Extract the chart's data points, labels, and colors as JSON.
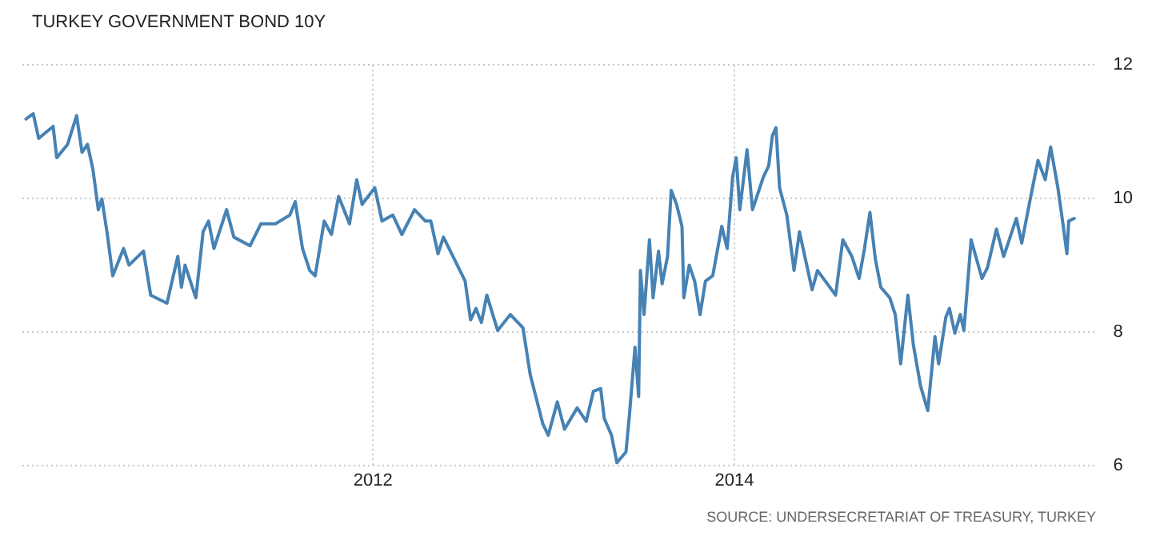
{
  "chart_data": {
    "type": "line",
    "title": "TURKEY GOVERNMENT BOND 10Y",
    "annotations": [
      "SOURCE: UNDERSECRETARIAT OF TREASURY, TURKEY"
    ],
    "xlim": [
      2010.06,
      2015.99
    ],
    "xticks": [
      2012,
      2014
    ],
    "ylim": [
      6,
      12
    ],
    "yticks": [
      6,
      8,
      10,
      12
    ],
    "grid": true,
    "legend": false,
    "marker": "none",
    "line_style": "solid",
    "series": [
      {
        "color": "#4682b4",
        "x": [
          2010.08,
          2010.12,
          2010.15,
          2010.23,
          2010.25,
          2010.31,
          2010.36,
          2010.39,
          2010.42,
          2010.45,
          2010.48,
          2010.5,
          2010.53,
          2010.56,
          2010.62,
          2010.65,
          2010.73,
          2010.77,
          2010.86,
          2010.92,
          2010.94,
          2010.96,
          2011.02,
          2011.06,
          2011.09,
          2011.12,
          2011.19,
          2011.23,
          2011.32,
          2011.38,
          2011.46,
          2011.54,
          2011.57,
          2011.61,
          2011.65,
          2011.68,
          2011.73,
          2011.77,
          2011.81,
          2011.87,
          2011.91,
          2011.94,
          2012.01,
          2012.05,
          2012.11,
          2012.16,
          2012.23,
          2012.29,
          2012.32,
          2012.36,
          2012.39,
          2012.51,
          2012.54,
          2012.57,
          2012.6,
          2012.63,
          2012.69,
          2012.76,
          2012.83,
          2012.87,
          2012.94,
          2012.97,
          2013.02,
          2013.06,
          2013.13,
          2013.18,
          2013.22,
          2013.26,
          2013.28,
          2013.32,
          2013.35,
          2013.4,
          2013.42,
          2013.45,
          2013.47,
          2013.48,
          2013.5,
          2013.53,
          2013.55,
          2013.58,
          2013.6,
          2013.63,
          2013.65,
          2013.68,
          2013.71,
          2013.72,
          2013.75,
          2013.78,
          2013.81,
          2013.84,
          2013.88,
          2013.93,
          2013.96,
          2013.99,
          2014.01,
          2014.03,
          2014.07,
          2014.1,
          2014.16,
          2014.19,
          2014.21,
          2014.23,
          2014.25,
          2014.29,
          2014.33,
          2014.36,
          2014.43,
          2014.46,
          2014.56,
          2014.6,
          2014.65,
          2014.69,
          2014.72,
          2014.75,
          2014.78,
          2014.81,
          2014.86,
          2014.89,
          2014.92,
          2014.96,
          2014.99,
          2015.03,
          2015.07,
          2015.11,
          2015.13,
          2015.17,
          2015.19,
          2015.22,
          2015.25,
          2015.27,
          2015.31,
          2015.37,
          2015.4,
          2015.45,
          2015.49,
          2015.56,
          2015.59,
          2015.64,
          2015.68,
          2015.72,
          2015.75,
          2015.79,
          2015.82,
          2015.84,
          2015.85,
          2015.88
        ],
        "values": [
          11.19,
          11.27,
          10.9,
          11.08,
          10.61,
          10.81,
          11.24,
          10.69,
          10.81,
          10.44,
          9.83,
          9.99,
          9.46,
          8.84,
          9.25,
          9.0,
          9.21,
          8.55,
          8.43,
          9.13,
          8.67,
          9.0,
          8.51,
          9.5,
          9.66,
          9.25,
          9.83,
          9.42,
          9.29,
          9.62,
          9.62,
          9.75,
          9.95,
          9.25,
          8.92,
          8.84,
          9.66,
          9.46,
          10.03,
          9.62,
          10.28,
          9.91,
          10.16,
          9.66,
          9.75,
          9.46,
          9.83,
          9.66,
          9.66,
          9.17,
          9.42,
          8.76,
          8.18,
          8.35,
          8.14,
          8.55,
          8.02,
          8.26,
          8.06,
          7.36,
          6.62,
          6.45,
          6.95,
          6.54,
          6.86,
          6.66,
          7.11,
          7.15,
          6.7,
          6.45,
          6.04,
          6.2,
          6.78,
          7.77,
          7.03,
          8.92,
          8.26,
          9.38,
          8.51,
          9.21,
          8.72,
          9.13,
          10.12,
          9.91,
          9.58,
          8.51,
          9.0,
          8.76,
          8.26,
          8.76,
          8.84,
          9.58,
          9.25,
          10.32,
          10.61,
          9.83,
          10.73,
          9.83,
          10.32,
          10.49,
          10.94,
          11.06,
          10.16,
          9.75,
          8.92,
          9.5,
          8.63,
          8.92,
          8.55,
          9.38,
          9.13,
          8.8,
          9.25,
          9.79,
          9.09,
          8.67,
          8.51,
          8.26,
          7.52,
          8.55,
          7.81,
          7.19,
          6.82,
          7.93,
          7.52,
          8.22,
          8.35,
          7.98,
          8.26,
          8.02,
          9.38,
          8.8,
          8.96,
          9.54,
          9.13,
          9.7,
          9.33,
          10.03,
          10.57,
          10.28,
          10.77,
          10.16,
          9.58,
          9.17,
          9.66,
          9.7
        ]
      }
    ]
  }
}
